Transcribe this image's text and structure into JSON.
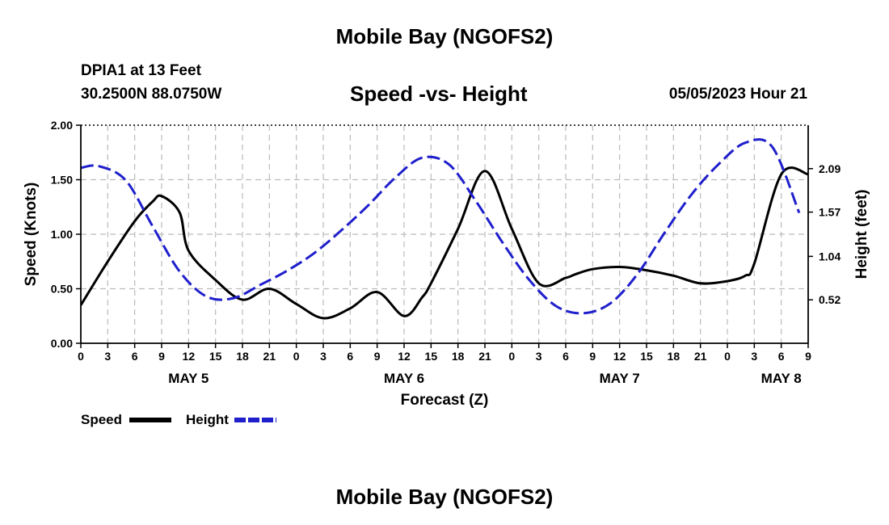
{
  "header": {
    "title": "Mobile Bay (NGOFS2)",
    "station": "DPIA1 at 13 Feet",
    "coords": "30.2500N  88.0750W",
    "subtitle": "Speed -vs- Height",
    "datetime": "05/05/2023 Hour 21"
  },
  "footer": {
    "title": "Mobile Bay (NGOFS2)"
  },
  "chart_data": {
    "type": "line",
    "title": "Speed -vs- Height",
    "xlabel": "Forecast (Z)",
    "ylabel": "Speed (Knots)",
    "y2label": "Height (feet)",
    "x_unit": "hours since May 5 00Z",
    "xlim": [
      -3,
      78
    ],
    "x_ticks": [
      -3,
      0,
      3,
      6,
      9,
      12,
      15,
      18,
      21,
      24,
      27,
      30,
      33,
      36,
      39,
      42,
      45,
      48,
      51,
      54,
      57,
      60,
      63,
      66,
      69,
      72,
      75,
      78
    ],
    "x_tick_labels": [
      "0",
      "3",
      "6",
      "9",
      "12",
      "15",
      "18",
      "21",
      "0",
      "3",
      "6",
      "9",
      "12",
      "15",
      "18",
      "21",
      "0",
      "3",
      "6",
      "9",
      "12",
      "15",
      "18",
      "21",
      "0",
      "3",
      "6",
      "9"
    ],
    "x_day_labels": [
      {
        "x": 9,
        "label": "MAY 5"
      },
      {
        "x": 33,
        "label": "MAY 6"
      },
      {
        "x": 57,
        "label": "MAY 7"
      },
      {
        "x": 75,
        "label": "MAY 8"
      }
    ],
    "ylim": [
      0,
      2
    ],
    "y_ticks": [
      0,
      0.5,
      1,
      1.5,
      2
    ],
    "y_tick_labels": [
      "0.00",
      "0.50",
      "1.00",
      "1.50",
      "2.00"
    ],
    "y2_ticks": [
      0.52,
      1.04,
      1.57,
      2.09
    ],
    "y2_tick_labels": [
      "0.52",
      "1.04",
      "1.57",
      "2.09"
    ],
    "y2lim": [
      0,
      2.61
    ],
    "grid": true,
    "legend": "bottom-left",
    "series": [
      {
        "name": "Speed",
        "axis": "left",
        "color": "#000000",
        "style": "solid",
        "x": [
          -3,
          0,
          3,
          5,
          6,
          8,
          9,
          12,
          15,
          18,
          21,
          24,
          27,
          30,
          33,
          35,
          36,
          39,
          42,
          45,
          48,
          51,
          52,
          54,
          57,
          60,
          63,
          66,
          69,
          71,
          72,
          75,
          78
        ],
        "y": [
          0.35,
          0.75,
          1.12,
          1.3,
          1.35,
          1.2,
          0.85,
          0.58,
          0.4,
          0.5,
          0.36,
          0.23,
          0.32,
          0.47,
          0.25,
          0.42,
          0.55,
          1.05,
          1.58,
          1.05,
          0.55,
          0.6,
          0.63,
          0.68,
          0.7,
          0.67,
          0.62,
          0.55,
          0.57,
          0.62,
          0.73,
          1.55,
          1.55
        ]
      },
      {
        "name": "Height",
        "axis": "right",
        "color": "#1f1fcc",
        "style": "dashed",
        "x": [
          -3,
          -1,
          2,
          5,
          8,
          11,
          14,
          17,
          20,
          23,
          26,
          29,
          32,
          35,
          38,
          41,
          44,
          47,
          50,
          53,
          56,
          59,
          62,
          65,
          68,
          71,
          74,
          77
        ],
        "y": [
          2.1,
          2.12,
          1.95,
          1.4,
          0.86,
          0.56,
          0.54,
          0.7,
          0.87,
          1.08,
          1.35,
          1.65,
          1.98,
          2.22,
          2.14,
          1.7,
          1.2,
          0.75,
          0.44,
          0.36,
          0.48,
          0.83,
          1.32,
          1.78,
          2.14,
          2.4,
          2.35,
          1.56
        ]
      }
    ]
  }
}
